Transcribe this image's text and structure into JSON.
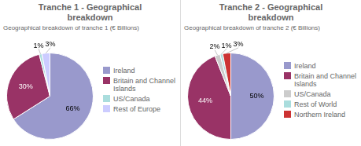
{
  "chart_data": [
    {
      "type": "pie",
      "title": "Tranche 1 - Geographical\nbreakdown",
      "subtitle": "Geographical breakdown of tranche 1 (€ Billions)",
      "categories": [
        "Ireland",
        "Britain and Channel\nIslands",
        "US/Canada",
        "Rest of Europe"
      ],
      "values": [
        66,
        30,
        1,
        3
      ],
      "value_labels": [
        "66%",
        "30%",
        "1%",
        "3%"
      ],
      "colors": [
        "#9999cc",
        "#993366",
        "#aadddd",
        "#ccccff"
      ],
      "data_labels": true,
      "legend": "right"
    },
    {
      "type": "pie",
      "title": "Tranche 2 - Geographical\nbreakdown",
      "subtitle": "Geographical breakdown of tranche 2 (€ Billions)",
      "categories": [
        "Ireland",
        "Britain and Channel\nIslands",
        "US/Canada",
        "Rest of World",
        "Northern Ireland"
      ],
      "values": [
        50,
        44,
        2,
        1,
        3
      ],
      "value_labels": [
        "50%",
        "44%",
        "2%",
        "1%",
        "3%"
      ],
      "colors": [
        "#9999cc",
        "#993366",
        "#cccccc",
        "#aadddd",
        "#cc3333"
      ],
      "data_labels": true,
      "legend": "right"
    }
  ]
}
